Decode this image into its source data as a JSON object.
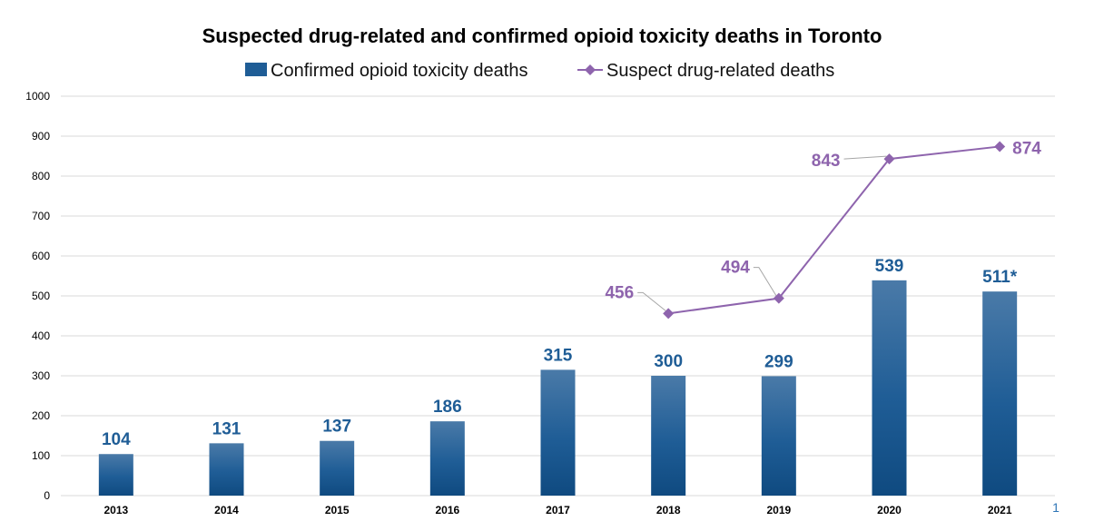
{
  "chart_data": {
    "type": "bar",
    "title": "Suspected drug-related and confirmed opioid toxicity deaths in Toronto",
    "categories": [
      "2013",
      "2014",
      "2015",
      "2016",
      "2017",
      "2018",
      "2019",
      "2020",
      "2021"
    ],
    "ylim": [
      0,
      1000
    ],
    "yticks": [
      0,
      100,
      200,
      300,
      400,
      500,
      600,
      700,
      800,
      900,
      1000
    ],
    "grid": true,
    "legend_position": "top",
    "series": [
      {
        "name": "Confirmed opioid toxicity deaths",
        "kind": "bar",
        "color": "#1f5d96",
        "values": [
          104,
          131,
          137,
          186,
          315,
          300,
          299,
          539,
          511
        ],
        "labels": [
          "104",
          "131",
          "137",
          "186",
          "315",
          "300",
          "299",
          "539",
          "511*"
        ]
      },
      {
        "name": "Suspect drug-related deaths",
        "kind": "line",
        "color": "#8e64ad",
        "values": [
          null,
          null,
          null,
          null,
          null,
          456,
          494,
          843,
          874
        ],
        "labels": [
          null,
          null,
          null,
          null,
          null,
          "456",
          "494",
          "843",
          "874"
        ]
      }
    ],
    "corner_mark": "1"
  }
}
